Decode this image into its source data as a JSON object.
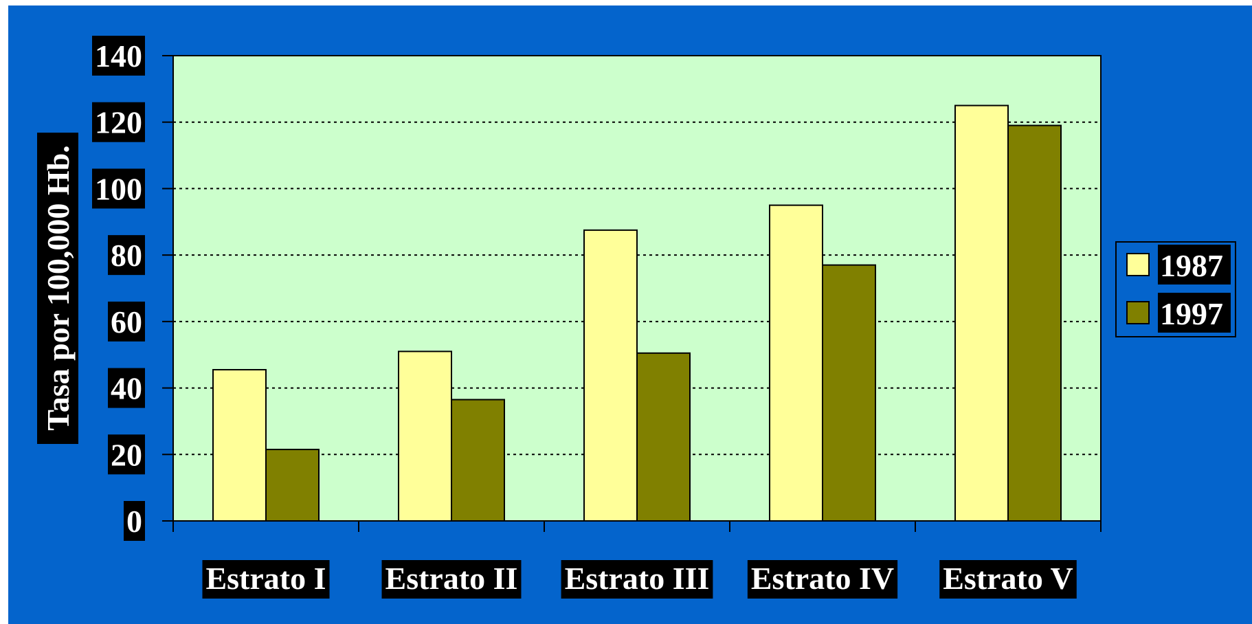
{
  "colors": {
    "background": "#0464cc",
    "plot_area": "#ccffcc",
    "series_1987": "#ffff99",
    "series_1997": "#808000",
    "label_box": "#000000",
    "label_text": "#ffffff"
  },
  "chart_data": {
    "type": "bar",
    "title": "",
    "xlabel": "",
    "ylabel": "Tasa por 100,000 Hb.",
    "categories": [
      "Estrato I",
      "Estrato II",
      "Estrato III",
      "Estrato IV",
      "Estrato V"
    ],
    "series": [
      {
        "name": "1987",
        "values": [
          45.5,
          51,
          87.5,
          95,
          125
        ]
      },
      {
        "name": "1997",
        "values": [
          21.5,
          36.5,
          50.5,
          77,
          119
        ]
      }
    ],
    "ylim": [
      0,
      140
    ],
    "yticks": [
      0,
      20,
      40,
      60,
      80,
      100,
      120,
      140
    ],
    "grid": "horizontal dotted",
    "legend_position": "right"
  }
}
